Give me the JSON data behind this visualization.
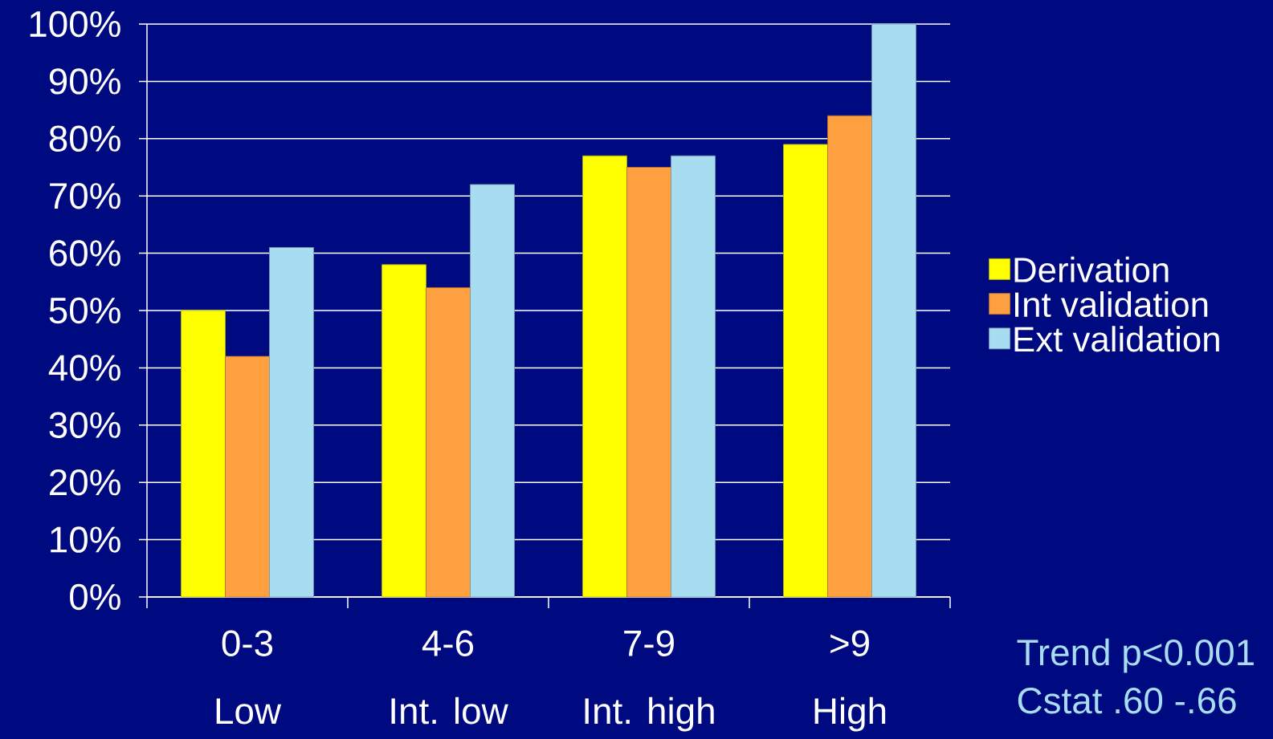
{
  "chart_data": {
    "type": "bar",
    "categories": [
      "0-3",
      "4-6",
      "7-9",
      ">9"
    ],
    "series": [
      {
        "name": "Derivation",
        "color": "#ffff00",
        "values": [
          50,
          58,
          77,
          79
        ]
      },
      {
        "name": "Int validation",
        "color": "#ffa040",
        "values": [
          42,
          54,
          75,
          84
        ]
      },
      {
        "name": "Ext validation",
        "color": "#a8dcf0",
        "values": [
          61,
          72,
          77,
          100
        ]
      }
    ],
    "ylim": [
      0,
      100
    ],
    "yticks": [
      {
        "value": 0,
        "label": "0%"
      },
      {
        "value": 10,
        "label": "10%"
      },
      {
        "value": 20,
        "label": "20%"
      },
      {
        "value": 30,
        "label": "30%"
      },
      {
        "value": 40,
        "label": "40%"
      },
      {
        "value": 50,
        "label": "50%"
      },
      {
        "value": 60,
        "label": "60%"
      },
      {
        "value": 70,
        "label": "70%"
      },
      {
        "value": 80,
        "label": "80%"
      },
      {
        "value": 90,
        "label": "90%"
      },
      {
        "value": 100,
        "label": "100%"
      }
    ],
    "grid": "y",
    "legend": "right",
    "annotations": [
      "Low",
      "Int. low",
      "Int. high",
      "High",
      "Trend p<0.001",
      "Cstat .60 -.66"
    ]
  }
}
